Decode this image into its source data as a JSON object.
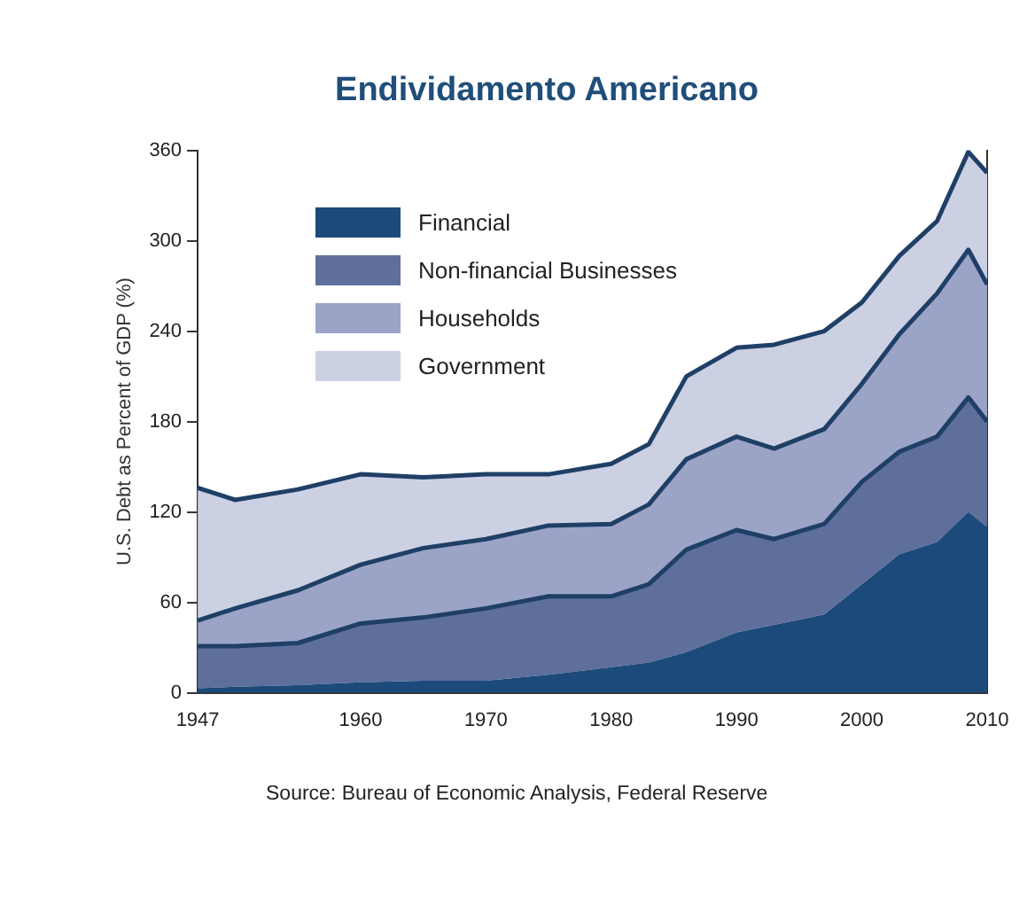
{
  "chart_data": {
    "type": "area",
    "title": "Endividamento Americano",
    "ylabel": "U.S. Debt as Percent of GDP (%)",
    "stacked": true,
    "legend": "top left",
    "grid": false,
    "x": [
      1947,
      1950,
      1955,
      1960,
      1965,
      1970,
      1975,
      1980,
      1983,
      1986,
      1990,
      1993,
      1997,
      2000,
      2003,
      2006,
      2008.5,
      2010
    ],
    "xlim": [
      1947,
      2010
    ],
    "xticks": [
      1947,
      1960,
      1970,
      1980,
      1990,
      2000,
      2010
    ],
    "ylim": [
      0,
      360
    ],
    "yticks": [
      0,
      60,
      120,
      180,
      240,
      300,
      360
    ],
    "series": [
      {
        "name": "Financial",
        "color": "#1c4a7a",
        "values": [
          3,
          4,
          5,
          7,
          8,
          8,
          12,
          17,
          20,
          27,
          40,
          45,
          52,
          72,
          92,
          100,
          120,
          110
        ]
      },
      {
        "name": "Non-financial Businesses",
        "color": "#5f6f9c",
        "values": [
          28,
          27,
          28,
          39,
          42,
          48,
          52,
          47,
          52,
          68,
          68,
          57,
          60,
          68,
          68,
          70,
          76,
          70
        ]
      },
      {
        "name": "Households",
        "color": "#9ba4c7",
        "values": [
          17,
          25,
          35,
          39,
          46,
          46,
          47,
          48,
          53,
          60,
          62,
          60,
          63,
          65,
          78,
          95,
          98,
          91
        ]
      },
      {
        "name": "Government",
        "color": "#ccd0e3",
        "values": [
          88,
          72,
          67,
          60,
          47,
          43,
          34,
          40,
          40,
          55,
          59,
          69,
          65,
          54,
          52,
          48,
          65,
          74
        ]
      }
    ],
    "annotations": [
      "Source: Bureau of Economic Analysis, Federal Reserve"
    ]
  }
}
